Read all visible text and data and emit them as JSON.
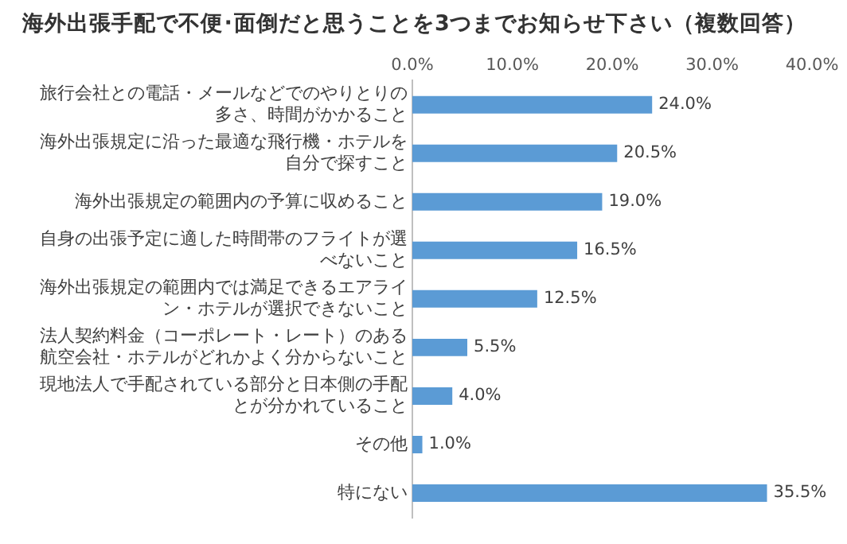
{
  "chart_data": {
    "type": "bar",
    "orientation": "horizontal",
    "title": "海外出張手配で不便･面倒だと思うことを3つまでお知らせ下さい（複数回答）",
    "categories": [
      "旅行会社との電話・メールなどでのやりとりの多さ、時間がかかること",
      "海外出張規定に沿った最適な飛行機・ホテルを自分で探すこと",
      "海外出張規定の範囲内の予算に収めること",
      "自身の出張予定に適した時間帯のフライトが選べないこと",
      "海外出張規定の範囲内では満足できるエアライン・ホテルが選択できないこと",
      "法人契約料金（コーポレート・レート）のある航空会社・ホテルがどれかよく分からないこと",
      "現地法人で手配されている部分と日本側の手配とが分かれていること",
      "その他",
      "特にない"
    ],
    "values": [
      24.0,
      20.5,
      19.0,
      16.5,
      12.5,
      5.5,
      4.0,
      1.0,
      35.5
    ],
    "value_labels": [
      "24.0%",
      "20.5%",
      "19.0%",
      "16.5%",
      "12.5%",
      "5.5%",
      "4.0%",
      "1.0%",
      "35.5%"
    ],
    "color": "#5b9bd5",
    "xlim": [
      0,
      40
    ],
    "xticks": [
      {
        "value": 0,
        "label": "0.0%"
      },
      {
        "value": 10,
        "label": "10.0%"
      },
      {
        "value": 20,
        "label": "20.0%"
      },
      {
        "value": 30,
        "label": "30.0%"
      },
      {
        "value": 40,
        "label": "40.0%"
      }
    ],
    "grid": false,
    "legend": false
  }
}
